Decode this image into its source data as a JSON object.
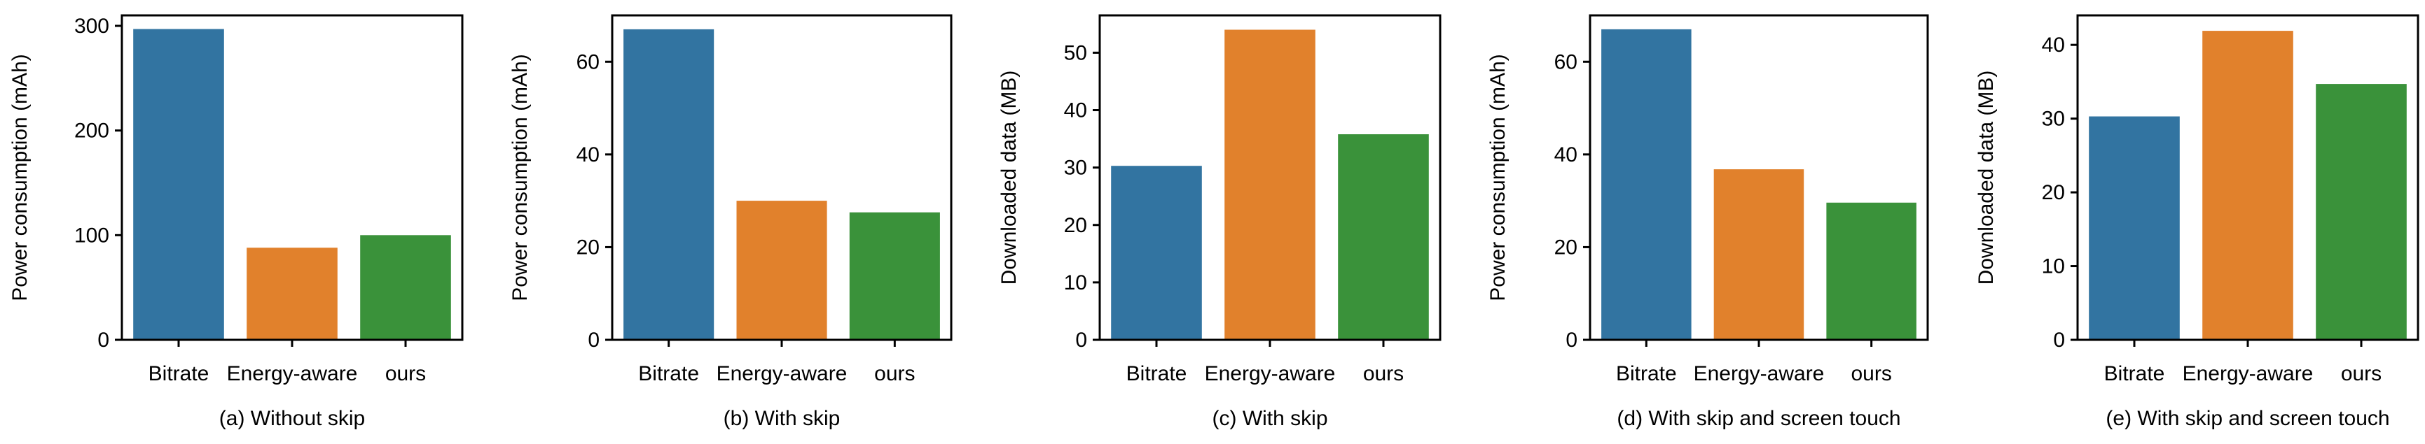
{
  "chart_data": [
    {
      "type": "bar",
      "categories": [
        "Bitrate",
        "Energy-aware",
        "ours"
      ],
      "values": [
        297,
        88,
        100
      ],
      "colors": [
        "#3274a1",
        "#e1812c",
        "#3a923a"
      ],
      "ylabel": "Power consumption (mAh)",
      "ylim": [
        0,
        310
      ],
      "yticks": [
        0,
        100,
        200,
        300
      ],
      "caption": "(a) Without skip"
    },
    {
      "type": "bar",
      "categories": [
        "Bitrate",
        "Energy-aware",
        "ours"
      ],
      "values": [
        67,
        30,
        27.5
      ],
      "colors": [
        "#3274a1",
        "#e1812c",
        "#3a923a"
      ],
      "ylabel": "Power consumption (mAh)",
      "ylim": [
        0,
        70
      ],
      "yticks": [
        0,
        20,
        40,
        60
      ],
      "caption": "(b) With skip"
    },
    {
      "type": "bar",
      "categories": [
        "Bitrate",
        "Energy-aware",
        "ours"
      ],
      "values": [
        30.3,
        54,
        35.8
      ],
      "colors": [
        "#3274a1",
        "#e1812c",
        "#3a923a"
      ],
      "ylabel": "Downloaded data (MB)",
      "ylim": [
        0,
        56.5
      ],
      "yticks": [
        0,
        10,
        20,
        30,
        40,
        50
      ],
      "caption": "(c) With skip"
    },
    {
      "type": "bar",
      "categories": [
        "Bitrate",
        "Energy-aware",
        "ours"
      ],
      "values": [
        67,
        36.8,
        29.6
      ],
      "colors": [
        "#3274a1",
        "#e1812c",
        "#3a923a"
      ],
      "ylabel": "Power consumption (mAh)",
      "ylim": [
        0,
        70
      ],
      "yticks": [
        0,
        20,
        40,
        60
      ],
      "caption": "(d) With skip and screen touch"
    },
    {
      "type": "bar",
      "categories": [
        "Bitrate",
        "Energy-aware",
        "ours"
      ],
      "values": [
        30.3,
        41.9,
        34.7
      ],
      "colors": [
        "#3274a1",
        "#e1812c",
        "#3a923a"
      ],
      "ylabel": "Downloaded data (MB)",
      "ylim": [
        0,
        44
      ],
      "yticks": [
        0,
        10,
        20,
        30,
        40
      ],
      "caption": "(e) With skip and screen touch"
    }
  ]
}
